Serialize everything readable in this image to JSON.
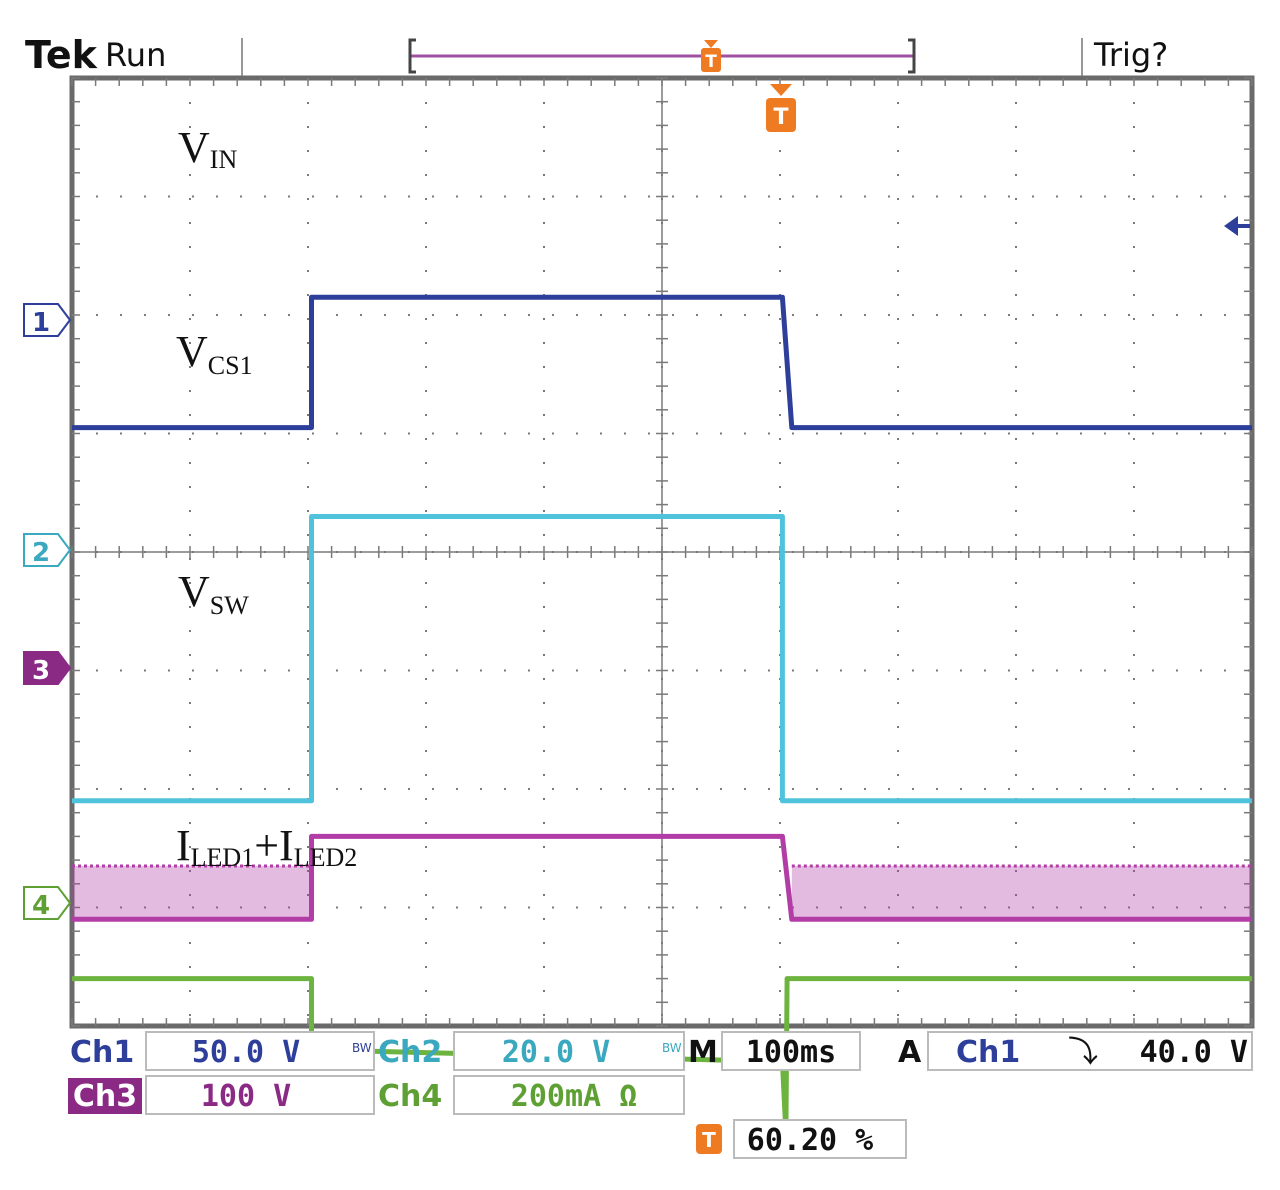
{
  "header": {
    "brand": "Tek",
    "state": "Run",
    "trigger_status": "Trig?"
  },
  "colors": {
    "ch1": "#2d3f9a",
    "ch2": "#4fc3dc",
    "ch3": "#b23da6",
    "ch4": "#6db33f",
    "trigger": "#ee7a22",
    "grid": "#7a7a7a"
  },
  "channel_markers": [
    "1",
    "2",
    "3",
    "4"
  ],
  "trigger_marker": "T",
  "signal_labels": {
    "vin": {
      "main": "V",
      "sub": "IN"
    },
    "vcs1": {
      "main": "V",
      "sub": "CS1"
    },
    "vsw": {
      "main": "V",
      "sub": "SW"
    },
    "iled": {
      "main1": "I",
      "sub1": "LED1",
      "plus": "+",
      "main2": "I",
      "sub2": "LED2"
    }
  },
  "readouts": {
    "ch1": {
      "label": "Ch1",
      "value": "50.0 V"
    },
    "ch2": {
      "label": "Ch2",
      "value": "20.0 V"
    },
    "ch3": {
      "label": "Ch3",
      "value": "100 V"
    },
    "ch4": {
      "label": "Ch4",
      "value": "200mA Ω"
    },
    "bw_mark": "BW",
    "timebase": {
      "label": "M",
      "value": "100ms"
    },
    "trigger": {
      "mode": "A",
      "source": "Ch1",
      "slope_symbol": "⤵",
      "level": "40.0 V"
    },
    "trigger_position": "60.20 %"
  },
  "chart_data": {
    "type": "line",
    "x_unit": "div",
    "y_unit": "div",
    "xlim": [
      0,
      10
    ],
    "ylim": [
      -4,
      4
    ],
    "grid": true,
    "series": [
      {
        "name": "VIN",
        "points": [
          [
            0,
            1.05
          ],
          [
            2.03,
            1.05
          ],
          [
            2.03,
            2.15
          ],
          [
            6.02,
            2.15
          ],
          [
            6.1,
            1.05
          ],
          [
            10,
            1.05
          ]
        ]
      },
      {
        "name": "VCS1",
        "points": [
          [
            0,
            -2.1
          ],
          [
            2.03,
            -2.1
          ],
          [
            2.03,
            0.3
          ],
          [
            6.02,
            0.3
          ],
          [
            6.02,
            -2.1
          ],
          [
            10,
            -2.1
          ]
        ]
      },
      {
        "name": "VSW",
        "points": [
          [
            0,
            -3.1
          ],
          [
            2.03,
            -3.1
          ],
          [
            2.03,
            -2.4
          ],
          [
            6.02,
            -2.4
          ],
          [
            6.1,
            -3.1
          ],
          [
            10,
            -3.1
          ]
        ],
        "switching_bands": [
          [
            0,
            2.03,
            -3.1,
            -2.65
          ],
          [
            6.1,
            10,
            -3.1,
            -2.65
          ]
        ]
      },
      {
        "name": "ILED1+ILED2",
        "points": [
          [
            0,
            -3.6
          ],
          [
            2.03,
            -3.6
          ],
          [
            2.03,
            -4.2
          ],
          [
            6.02,
            -4.3
          ],
          [
            6.05,
            -4.9
          ],
          [
            6.06,
            -3.6
          ],
          [
            10,
            -3.6
          ]
        ]
      }
    ]
  }
}
